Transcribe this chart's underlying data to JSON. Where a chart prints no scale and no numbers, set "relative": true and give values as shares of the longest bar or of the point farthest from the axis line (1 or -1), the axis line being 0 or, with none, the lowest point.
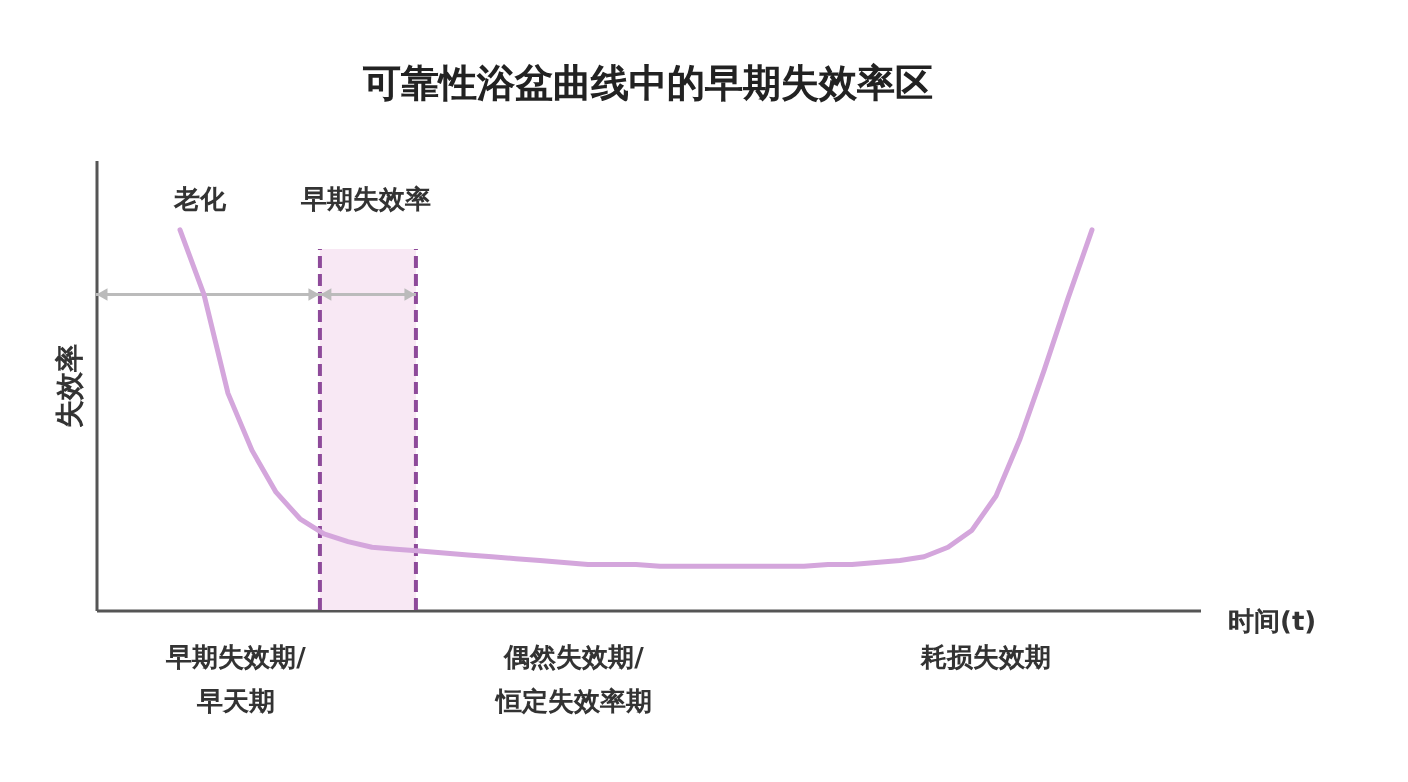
{
  "chart_data": {
    "type": "line",
    "title": "可靠性浴盆曲线中的早期失效率区",
    "ylabel": "失效率",
    "xlabel": "时间(t)",
    "relative": true,
    "categories": [
      null,
      null,
      null,
      null,
      null,
      null,
      null,
      null,
      null,
      null,
      null,
      null,
      null,
      null,
      null,
      null,
      null,
      null,
      null,
      null,
      null,
      null,
      null,
      null,
      null,
      null,
      null,
      null,
      null,
      null,
      null,
      null,
      null,
      null,
      null,
      null,
      null,
      null,
      null,
      null,
      null,
      null,
      null,
      null,
      null,
      null
    ],
    "series": [
      {
        "color": "#d4a6dc",
        "values": [
          null,
          null,
          null,
          1.0,
          0.83,
          0.57,
          0.42,
          0.31,
          0.24,
          0.2,
          0.18,
          0.165,
          0.16,
          0.155,
          0.15,
          0.145,
          0.14,
          0.135,
          0.13,
          0.125,
          0.12,
          0.12,
          0.12,
          0.115,
          0.115,
          0.115,
          0.115,
          0.115,
          0.115,
          0.115,
          0.12,
          0.12,
          0.125,
          0.13,
          0.14,
          0.165,
          0.21,
          0.3,
          0.45,
          0.63,
          0.82,
          1.0,
          null,
          null,
          null,
          null
        ]
      }
    ],
    "annotations": [
      "老化",
      "早期失效率",
      "早期失效期/\n早天期",
      "偶然失效期/\n恒定失效率期",
      "耗损失效期"
    ]
  }
}
